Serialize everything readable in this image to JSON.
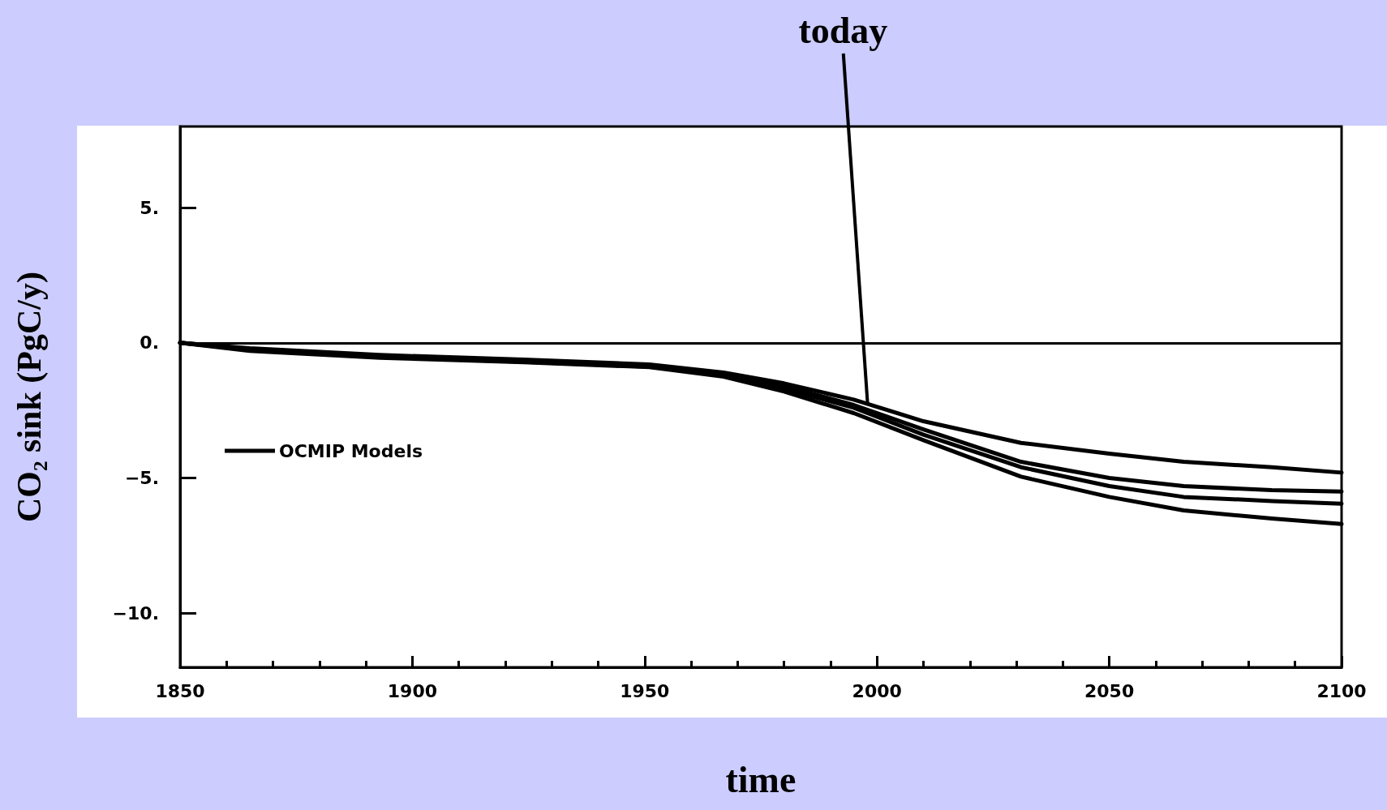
{
  "chart_data": {
    "type": "line",
    "xlabel": "time",
    "ylabel": "CO₂ sink (PgC/y)",
    "x": [
      1850,
      1865,
      1893,
      1924,
      1951,
      1967,
      1980,
      1995,
      2010,
      2031,
      2050,
      2066,
      2085,
      2100
    ],
    "series": [
      {
        "name": "OCMIP Models",
        "color": "#000000",
        "values": [
          0,
          -0.2,
          -0.45,
          -0.62,
          -0.8,
          -1.1,
          -1.5,
          -2.1,
          -2.9,
          -3.7,
          -4.1,
          -4.4,
          -4.6,
          -4.8
        ]
      },
      {
        "color": "#000000",
        "values": [
          0,
          -0.25,
          -0.5,
          -0.68,
          -0.85,
          -1.15,
          -1.6,
          -2.3,
          -3.2,
          -4.4,
          -5.0,
          -5.3,
          -5.45,
          -5.5
        ]
      },
      {
        "color": "#000000",
        "values": [
          0,
          -0.25,
          -0.52,
          -0.7,
          -0.88,
          -1.2,
          -1.7,
          -2.4,
          -3.4,
          -4.6,
          -5.3,
          -5.7,
          -5.85,
          -5.95
        ]
      },
      {
        "color": "#000000",
        "values": [
          0,
          -0.3,
          -0.55,
          -0.72,
          -0.9,
          -1.25,
          -1.8,
          -2.6,
          -3.6,
          -4.95,
          -5.7,
          -6.2,
          -6.5,
          -6.7
        ]
      }
    ],
    "xlim": [
      1850,
      2100
    ],
    "xticks": [
      1850,
      1900,
      1950,
      2000,
      2050,
      2100
    ],
    "ylim": [
      -12,
      8
    ],
    "yticks": [
      {
        "value": -10,
        "label": "−10."
      },
      {
        "value": -5,
        "label": "−5."
      },
      {
        "value": 0,
        "label": "0."
      },
      {
        "value": 5,
        "label": "5."
      }
    ],
    "ref_lines": [
      {
        "axis": "y",
        "value": 0,
        "color": "#000000"
      }
    ],
    "annotations": [
      {
        "text": "today",
        "x": 1998,
        "y": -2.3
      }
    ],
    "legend": "left",
    "grid": false,
    "marker": "none",
    "line_style": "solid"
  }
}
